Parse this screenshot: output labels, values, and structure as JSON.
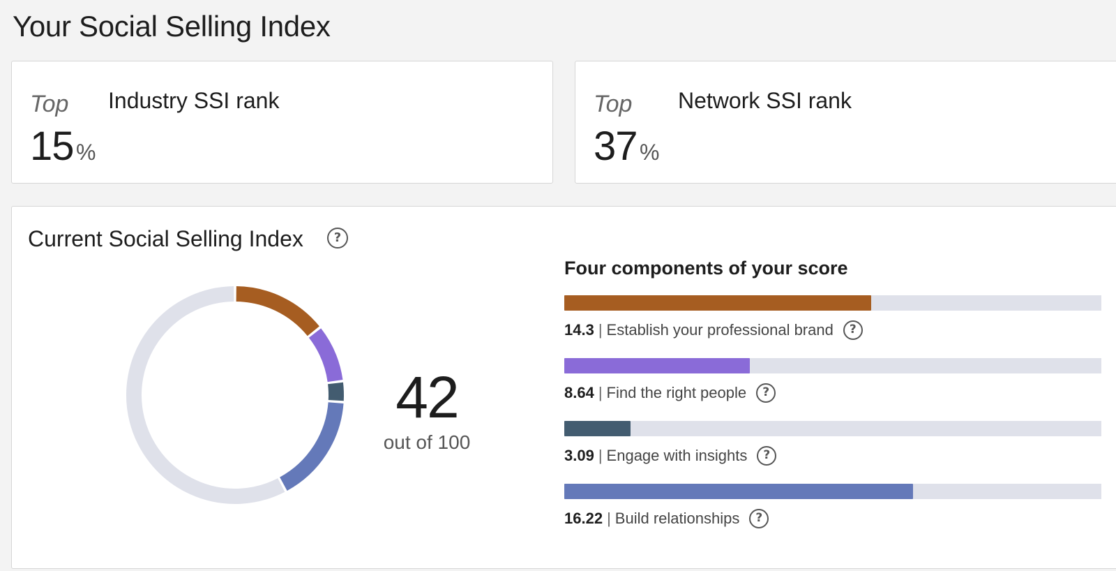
{
  "page": {
    "title": "Your Social Selling Index"
  },
  "rank_cards": [
    {
      "top_label": "Top",
      "value": "15",
      "unit": "%",
      "label": "Industry SSI rank"
    },
    {
      "top_label": "Top",
      "value": "37",
      "unit": "%",
      "label": "Network SSI rank"
    }
  ],
  "ssi": {
    "title": "Current Social Selling Index",
    "help_icon": "question-circle-icon",
    "score": "42",
    "score_sub": "out of 100",
    "max": 100
  },
  "components": {
    "heading": "Four components of your score",
    "max_per_component": 25,
    "items": [
      {
        "value": "14.3",
        "separator": "|",
        "label": "Establish your professional brand",
        "color": "#a65d21",
        "help_icon": "question-circle-icon"
      },
      {
        "value": "8.64",
        "separator": "|",
        "label": "Find the right people",
        "color": "#8a6bd8",
        "help_icon": "question-circle-icon"
      },
      {
        "value": "3.09",
        "separator": "|",
        "label": "Engage with insights",
        "color": "#435c70",
        "help_icon": "question-circle-icon"
      },
      {
        "value": "16.22",
        "separator": "|",
        "label": "Build relationships",
        "color": "#6479b9",
        "help_icon": "question-circle-icon"
      }
    ]
  },
  "colors": {
    "track": "#dfe1ea",
    "page_bg": "#f3f3f3",
    "card_bg": "#ffffff"
  }
}
